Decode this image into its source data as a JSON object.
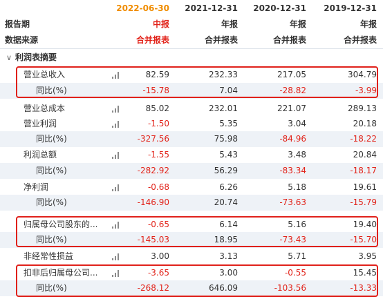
{
  "columns": [
    {
      "date": "2022-06-30",
      "report_type": "中报",
      "data_source": "合并报表",
      "accent": true
    },
    {
      "date": "2021-12-31",
      "report_type": "年报",
      "data_source": "合并报表",
      "accent": false
    },
    {
      "date": "2020-12-31",
      "report_type": "年报",
      "data_source": "合并报表",
      "accent": false
    },
    {
      "date": "2019-12-31",
      "report_type": "年报",
      "data_source": "合并报表",
      "accent": false
    }
  ],
  "header": {
    "report_period_label": "报告期",
    "data_source_label": "数据来源"
  },
  "section": {
    "title": "利润表摘要",
    "chevron": "chevron-down-icon"
  },
  "rows": [
    {
      "key": "revenue",
      "label": "营业总收入",
      "level": 1,
      "chart_icon": true,
      "values": [
        "82.59",
        "232.33",
        "217.05",
        "304.79"
      ],
      "neg": [
        false,
        false,
        false,
        false
      ]
    },
    {
      "key": "revenue_yoy",
      "label": "同比(%)",
      "level": 2,
      "chart_icon": false,
      "values": [
        "-15.78",
        "7.04",
        "-28.82",
        "-3.99"
      ],
      "neg": [
        true,
        false,
        true,
        true
      ]
    },
    {
      "key": "total_cost",
      "label": "营业总成本",
      "level": 1,
      "chart_icon": true,
      "values": [
        "85.02",
        "232.01",
        "221.07",
        "289.13"
      ],
      "neg": [
        false,
        false,
        false,
        false
      ]
    },
    {
      "key": "op_profit",
      "label": "营业利润",
      "level": 1,
      "chart_icon": true,
      "values": [
        "-1.50",
        "5.35",
        "3.04",
        "20.18"
      ],
      "neg": [
        true,
        false,
        false,
        false
      ]
    },
    {
      "key": "op_profit_yoy",
      "label": "同比(%)",
      "level": 2,
      "chart_icon": false,
      "values": [
        "-327.56",
        "75.98",
        "-84.96",
        "-18.22"
      ],
      "neg": [
        true,
        false,
        true,
        true
      ]
    },
    {
      "key": "total_profit",
      "label": "利润总额",
      "level": 1,
      "chart_icon": true,
      "values": [
        "-1.55",
        "5.43",
        "3.48",
        "20.84"
      ],
      "neg": [
        true,
        false,
        false,
        false
      ]
    },
    {
      "key": "total_profit_yoy",
      "label": "同比(%)",
      "level": 2,
      "chart_icon": false,
      "values": [
        "-282.92",
        "56.29",
        "-83.34",
        "-18.17"
      ],
      "neg": [
        true,
        false,
        true,
        true
      ]
    },
    {
      "key": "net_profit",
      "label": "净利润",
      "level": 1,
      "chart_icon": true,
      "values": [
        "-0.68",
        "6.26",
        "5.18",
        "19.61"
      ],
      "neg": [
        true,
        false,
        false,
        false
      ]
    },
    {
      "key": "net_profit_yoy",
      "label": "同比(%)",
      "level": 2,
      "chart_icon": false,
      "values": [
        "-146.90",
        "20.74",
        "-73.63",
        "-15.79"
      ],
      "neg": [
        true,
        false,
        true,
        true
      ]
    },
    {
      "key": "parent_np",
      "label": "归属母公司股东的...",
      "level": 1,
      "chart_icon": true,
      "values": [
        "-0.65",
        "6.14",
        "5.16",
        "19.40"
      ],
      "neg": [
        true,
        false,
        false,
        false
      ]
    },
    {
      "key": "parent_np_yoy",
      "label": "同比(%)",
      "level": 2,
      "chart_icon": false,
      "values": [
        "-145.03",
        "18.95",
        "-73.43",
        "-15.70"
      ],
      "neg": [
        true,
        false,
        true,
        true
      ]
    },
    {
      "key": "non_recurring",
      "label": "非经常性损益",
      "level": 1,
      "chart_icon": true,
      "values": [
        "3.00",
        "3.13",
        "5.71",
        "3.95"
      ],
      "neg": [
        false,
        false,
        false,
        false
      ]
    },
    {
      "key": "deducted_np",
      "label": "扣非后归属母公司...",
      "level": 1,
      "chart_icon": true,
      "values": [
        "-3.65",
        "3.00",
        "-0.55",
        "15.45"
      ],
      "neg": [
        true,
        false,
        true,
        false
      ]
    },
    {
      "key": "deducted_np_yoy",
      "label": "同比(%)",
      "level": 2,
      "chart_icon": false,
      "values": [
        "-268.12",
        "646.09",
        "-103.56",
        "-13.33"
      ],
      "neg": [
        true,
        false,
        true,
        true
      ]
    }
  ],
  "colors": {
    "accent_orange": "#f08c00",
    "negative_red": "#e2231a",
    "highlight_box": "#e0201a",
    "row_shade": "#eef2f7"
  }
}
